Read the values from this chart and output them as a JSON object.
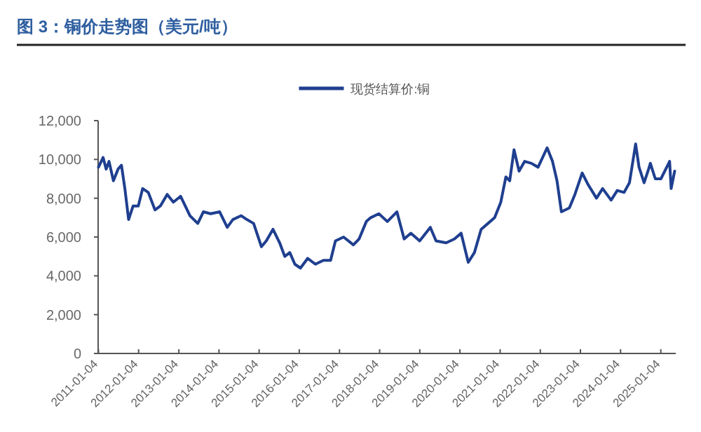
{
  "chart_data": {
    "type": "line",
    "title": "图 3：铜价走势图（美元/吨）",
    "xlim": [
      "2011-01-01",
      "2025-05-20"
    ],
    "xticks": [
      "2011-01-04",
      "2012-01-04",
      "2013-01-04",
      "2014-01-04",
      "2015-01-04",
      "2016-01-04",
      "2017-01-04",
      "2018-01-04",
      "2019-01-04",
      "2020-01-04",
      "2021-01-04",
      "2022-01-04",
      "2023-01-04",
      "2024-01-04",
      "2025-01-04"
    ],
    "ylim": [
      0,
      12000
    ],
    "yticks": [
      0,
      {
        "value": 2000,
        "label": "2,000"
      },
      {
        "value": 4000,
        "label": "4,000"
      },
      {
        "value": 6000,
        "label": "6,000"
      },
      {
        "value": 8000,
        "label": "8,000"
      },
      {
        "value": 10000,
        "label": "10,000"
      },
      {
        "value": 12000,
        "label": "12,000"
      }
    ],
    "grid": false,
    "legend": "top",
    "x": [
      "2011-01-04",
      "2011-02-15",
      "2011-03-15",
      "2011-04-10",
      "2011-05-20",
      "2011-07-01",
      "2011-08-01",
      "2011-09-01",
      "2011-10-05",
      "2011-11-15",
      "2012-01-01",
      "2012-02-10",
      "2012-04-01",
      "2012-06-01",
      "2012-07-20",
      "2012-09-20",
      "2012-11-15",
      "2013-01-20",
      "2013-04-15",
      "2013-06-25",
      "2013-08-15",
      "2013-10-20",
      "2014-01-10",
      "2014-03-20",
      "2014-05-10",
      "2014-07-25",
      "2014-09-15",
      "2014-11-15",
      "2015-01-25",
      "2015-03-10",
      "2015-05-10",
      "2015-07-10",
      "2015-08-25",
      "2015-10-10",
      "2015-11-25",
      "2016-01-15",
      "2016-03-20",
      "2016-05-30",
      "2016-08-10",
      "2016-10-15",
      "2016-11-28",
      "2017-02-10",
      "2017-05-10",
      "2017-07-01",
      "2017-09-05",
      "2017-10-15",
      "2017-12-28",
      "2018-03-15",
      "2018-06-10",
      "2018-08-15",
      "2018-10-15",
      "2019-01-03",
      "2019-04-10",
      "2019-06-01",
      "2019-09-01",
      "2019-11-15",
      "2020-01-15",
      "2020-03-20",
      "2020-05-15",
      "2020-07-15",
      "2020-09-15",
      "2020-11-15",
      "2021-01-10",
      "2021-02-25",
      "2021-04-01",
      "2021-05-10",
      "2021-06-25",
      "2021-08-15",
      "2021-10-15",
      "2021-12-15",
      "2022-03-07",
      "2022-04-25",
      "2022-06-05",
      "2022-07-15",
      "2022-09-25",
      "2022-11-15",
      "2023-01-20",
      "2023-03-15",
      "2023-05-30",
      "2023-07-25",
      "2023-10-10",
      "2023-12-05",
      "2024-02-05",
      "2024-03-25",
      "2024-05-20",
      "2024-06-20",
      "2024-08-05",
      "2024-09-15",
      "2024-10-01",
      "2024-11-15",
      "2025-01-05",
      "2025-03-25",
      "2025-04-08",
      "2025-05-10"
    ],
    "series": [
      {
        "name": "现货结算价:铜",
        "color": "#1f3f8f",
        "values": [
          9600,
          10100,
          9500,
          9900,
          8900,
          9500,
          9700,
          8500,
          6900,
          7600,
          7600,
          8500,
          8300,
          7400,
          7600,
          8200,
          7800,
          8100,
          7100,
          6700,
          7300,
          7200,
          7300,
          6500,
          6900,
          7100,
          6900,
          6700,
          5500,
          5800,
          6400,
          5700,
          5000,
          5200,
          4600,
          4400,
          4900,
          4600,
          4800,
          4800,
          5800,
          6000,
          5600,
          5900,
          6800,
          7000,
          7200,
          6800,
          7300,
          5900,
          6200,
          5800,
          6500,
          5800,
          5700,
          5900,
          6200,
          4700,
          5200,
          6400,
          6700,
          7000,
          7800,
          9100,
          8900,
          10500,
          9400,
          9900,
          9800,
          9600,
          10600,
          9900,
          8900,
          7300,
          7500,
          8200,
          9300,
          8700,
          8000,
          8500,
          7900,
          8400,
          8300,
          8800,
          10800,
          9600,
          8800,
          9500,
          9800,
          9000,
          9000,
          9900,
          8500,
          9400
        ]
      }
    ]
  }
}
